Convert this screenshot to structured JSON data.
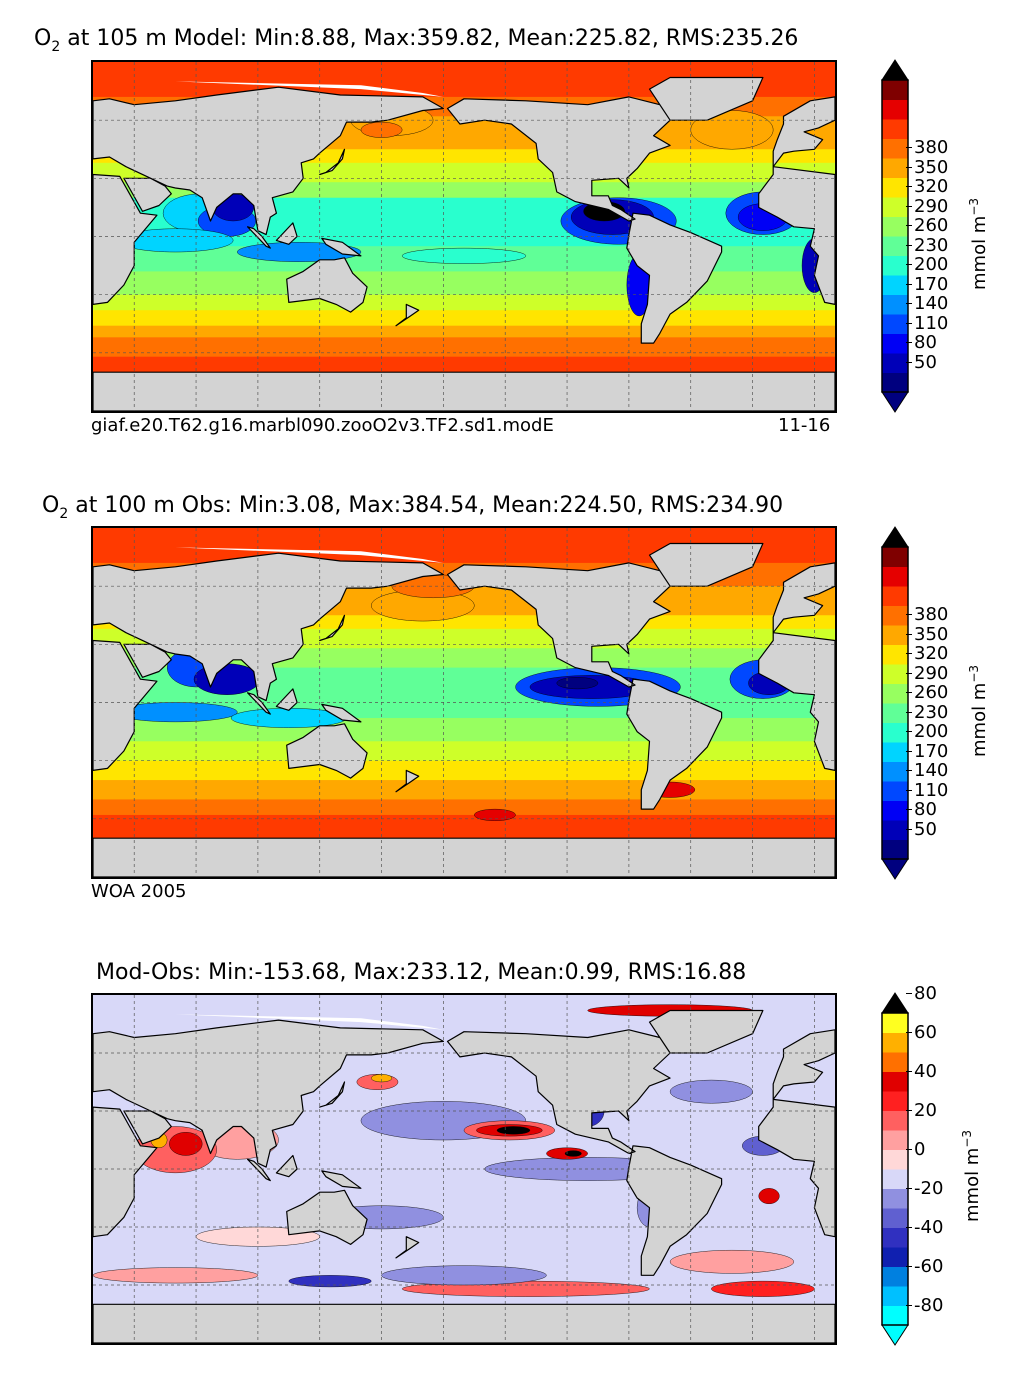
{
  "panels": [
    {
      "id": "model",
      "title_prefix": "O",
      "title_sub": "2",
      "title_rest": " at 105 m Model: Min:8.88, Max:359.82, Mean:225.82, RMS:235.26",
      "left_note": "giaf.e20.T62.g16.marbl090.zooO2v3.TF2.sd1.modE",
      "right_note": "11-16",
      "units": "mmol m",
      "units_exp": "−3",
      "ticks": [
        "50",
        "80",
        "110",
        "140",
        "170",
        "200",
        "230",
        "260",
        "290",
        "320",
        "350",
        "380"
      ],
      "colors": [
        "#00007f",
        "#0000b8",
        "#0000f5",
        "#0048ff",
        "#0090ff",
        "#00d4ff",
        "#29ffce",
        "#60ff97",
        "#97ff60",
        "#ceff29",
        "#ffe500",
        "#ffa800",
        "#ff7000",
        "#ff3a00",
        "#e50000",
        "#7f0000"
      ]
    },
    {
      "id": "obs",
      "title_prefix": "O",
      "title_sub": "2",
      "title_rest": " at 100 m Obs: Min:3.08, Max:384.54, Mean:224.50, RMS:234.90",
      "left_note": "WOA 2005",
      "right_note": "",
      "units": "mmol m",
      "units_exp": "−3",
      "ticks": [
        "50",
        "80",
        "110",
        "140",
        "170",
        "200",
        "230",
        "260",
        "290",
        "320",
        "350",
        "380"
      ],
      "colors": [
        "#00007f",
        "#0000b8",
        "#0000f5",
        "#0048ff",
        "#0090ff",
        "#00d4ff",
        "#29ffce",
        "#60ff97",
        "#97ff60",
        "#ceff29",
        "#ffe500",
        "#ffa800",
        "#ff7000",
        "#ff3a00",
        "#e50000",
        "#7f0000"
      ]
    },
    {
      "id": "diff",
      "title_prefix": "",
      "title_sub": "",
      "title_rest": "Mod-Obs: Min:-153.68, Max:233.12, Mean:0.99, RMS:16.88",
      "left_note": "",
      "right_note": "",
      "units": "mmol m",
      "units_exp": "−3",
      "ticks": [
        "-80",
        "-60",
        "-40",
        "-20",
        "0",
        "20",
        "40",
        "60",
        "80"
      ],
      "colors": [
        "#00ffff",
        "#00c0ff",
        "#0080e0",
        "#1020b0",
        "#3030c0",
        "#6060d0",
        "#9090e0",
        "#d8d8f8",
        "#ffd8d8",
        "#ffa0a0",
        "#ff6060",
        "#ff2020",
        "#e00000",
        "#ff7000",
        "#ffb000",
        "#ffff20"
      ]
    }
  ],
  "chart_data": {
    "type": "map",
    "projection": "cylindrical equidistant, global",
    "variable": "O2",
    "units": "mmol m^-3",
    "colorbar_extend": "both",
    "grid": true,
    "panels": [
      {
        "name": "Model",
        "depth_m": 105,
        "min": 8.88,
        "max": 359.82,
        "mean": 225.82,
        "rms": 235.26,
        "levels": [
          50,
          80,
          110,
          140,
          170,
          200,
          230,
          260,
          290,
          320,
          350,
          380
        ]
      },
      {
        "name": "Obs",
        "depth_m": 100,
        "min": 3.08,
        "max": 384.54,
        "mean": 224.5,
        "rms": 234.9,
        "levels": [
          50,
          80,
          110,
          140,
          170,
          200,
          230,
          260,
          290,
          320,
          350,
          380
        ]
      },
      {
        "name": "Mod-Obs",
        "min": -153.68,
        "max": 233.12,
        "mean": 0.99,
        "rms": 16.88,
        "levels": [
          -80,
          -60,
          -40,
          -20,
          0,
          20,
          40,
          60,
          80
        ]
      }
    ]
  }
}
